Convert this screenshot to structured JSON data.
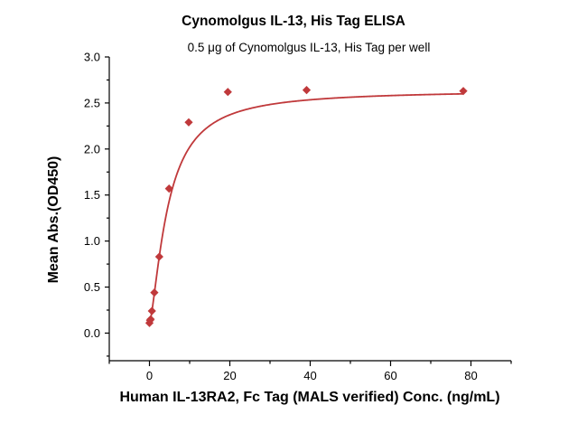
{
  "chart_data": {
    "type": "scatter",
    "title": "Cynomolgus IL-13, His Tag ELISA",
    "subtitle": "0.5 μg of Cynomolgus IL-13, His Tag per well",
    "xlabel": "Human IL-13RA2, Fc Tag (MALS verified) Conc. (ng/mL)",
    "ylabel": "Mean Abs.(OD450)",
    "xlim": [
      -10,
      90
    ],
    "ylim": [
      -0.3,
      3.0
    ],
    "xticks": [
      0,
      20,
      40,
      60,
      80
    ],
    "yticks": [
      0.0,
      0.5,
      1.0,
      1.5,
      2.0,
      2.5,
      3.0
    ],
    "xtick_labels": [
      "0",
      "20",
      "40",
      "60",
      "80"
    ],
    "ytick_labels": [
      "0.0",
      "0.5",
      "1.0",
      "1.5",
      "2.0",
      "2.5",
      "3.0"
    ],
    "grid": false,
    "series": [
      {
        "color": "#c0393b",
        "marker": "diamond",
        "fit": "sigmoidal",
        "points": [
          {
            "x": 0.0,
            "y": 0.11
          },
          {
            "x": 0.15,
            "y": 0.14
          },
          {
            "x": 0.3,
            "y": 0.15
          },
          {
            "x": 0.61,
            "y": 0.24
          },
          {
            "x": 1.22,
            "y": 0.44
          },
          {
            "x": 2.44,
            "y": 0.83
          },
          {
            "x": 4.88,
            "y": 1.57
          },
          {
            "x": 9.77,
            "y": 2.29
          },
          {
            "x": 19.5,
            "y": 2.62
          },
          {
            "x": 39.1,
            "y": 2.64
          },
          {
            "x": 78.1,
            "y": 2.63
          }
        ]
      }
    ]
  }
}
